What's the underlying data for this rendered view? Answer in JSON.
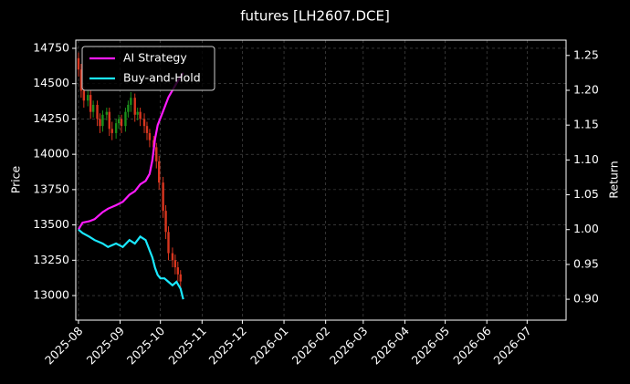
{
  "chart_data": {
    "type": "candlestick",
    "title": "futures [LH2607.DCE]",
    "ylabel": "Price",
    "y2label": "Return",
    "x": [
      0,
      2,
      4,
      7,
      9,
      11,
      14,
      16,
      18,
      21,
      23,
      25,
      28,
      30,
      32,
      35,
      37,
      39,
      42,
      44,
      46,
      49,
      51,
      53,
      56,
      58,
      60,
      63,
      65,
      67,
      70,
      72,
      74,
      76
    ],
    "open": [
      14680,
      14600,
      14450,
      14380,
      14420,
      14300,
      14350,
      14250,
      14200,
      14280,
      14300,
      14180,
      14150,
      14220,
      14250,
      14200,
      14300,
      14350,
      14400,
      14280,
      14300,
      14250,
      14200,
      14150,
      14100,
      14050,
      13950,
      13800,
      13600,
      13450,
      13300,
      13250,
      13200,
      13150
    ],
    "high": [
      14720,
      14640,
      14480,
      14450,
      14450,
      14380,
      14380,
      14290,
      14310,
      14330,
      14330,
      14230,
      14250,
      14280,
      14280,
      14330,
      14380,
      14440,
      14430,
      14330,
      14330,
      14290,
      14230,
      14180,
      14130,
      14080,
      13990,
      13840,
      13640,
      13490,
      13340,
      13290,
      13240,
      13180
    ],
    "low": [
      14550,
      14400,
      14330,
      14340,
      14250,
      14260,
      14200,
      14150,
      14160,
      14240,
      14130,
      14100,
      14110,
      14180,
      14150,
      14160,
      14260,
      14300,
      14230,
      14240,
      14200,
      14150,
      14100,
      14050,
      14000,
      13900,
      13750,
      13550,
      13400,
      13250,
      13200,
      13150,
      13100,
      13050
    ],
    "close": [
      14600,
      14450,
      14380,
      14420,
      14300,
      14350,
      14250,
      14200,
      14280,
      14300,
      14180,
      14150,
      14220,
      14250,
      14200,
      14300,
      14350,
      14400,
      14280,
      14300,
      14250,
      14200,
      14150,
      14100,
      14050,
      13950,
      13800,
      13600,
      13450,
      13300,
      13250,
      13200,
      13150,
      13100
    ],
    "up_color": "#1a8f1a",
    "down_color": "#d8361f",
    "series": [
      {
        "name": "AI Strategy",
        "color": "#ff1aff",
        "axis": "y2",
        "x": [
          0,
          3,
          8,
          12,
          18,
          22,
          28,
          33,
          38,
          42,
          46,
          50,
          53,
          55,
          57,
          59,
          61,
          64,
          67,
          70,
          73,
          76,
          78
        ],
        "values": [
          1.0,
          1.01,
          1.012,
          1.015,
          1.025,
          1.03,
          1.035,
          1.04,
          1.05,
          1.055,
          1.065,
          1.07,
          1.08,
          1.1,
          1.13,
          1.15,
          1.16,
          1.175,
          1.19,
          1.2,
          1.21,
          1.22,
          1.225
        ]
      },
      {
        "name": "Buy-and-Hold",
        "color": "#1ae8ff",
        "axis": "y2",
        "x": [
          0,
          3,
          8,
          12,
          18,
          22,
          28,
          33,
          38,
          42,
          46,
          50,
          53,
          55,
          57,
          59,
          61,
          64,
          67,
          70,
          73,
          76,
          78
        ],
        "values": [
          1.0,
          0.995,
          0.99,
          0.985,
          0.98,
          0.975,
          0.98,
          0.975,
          0.985,
          0.98,
          0.99,
          0.985,
          0.97,
          0.96,
          0.945,
          0.935,
          0.93,
          0.93,
          0.925,
          0.92,
          0.925,
          0.915,
          0.9
        ]
      }
    ],
    "xlim": [
      -2,
      363
    ],
    "xticks": [
      {
        "value": 0,
        "label": "2025-08"
      },
      {
        "value": 31,
        "label": "2025-09"
      },
      {
        "value": 61,
        "label": "2025-10"
      },
      {
        "value": 92,
        "label": "2025-11"
      },
      {
        "value": 122,
        "label": "2025-12"
      },
      {
        "value": 153,
        "label": "2026-01"
      },
      {
        "value": 184,
        "label": "2026-02"
      },
      {
        "value": 212,
        "label": "2026-03"
      },
      {
        "value": 243,
        "label": "2026-04"
      },
      {
        "value": 273,
        "label": "2026-05"
      },
      {
        "value": 304,
        "label": "2026-06"
      },
      {
        "value": 334,
        "label": "2026-07"
      }
    ],
    "ylim": [
      12826,
      14808
    ],
    "yticks": [
      13000,
      13250,
      13500,
      13750,
      14000,
      14250,
      14500,
      14750
    ],
    "y2lim": [
      0.87,
      1.272
    ],
    "y2ticks": [
      {
        "value": 0.9,
        "label": "0.90"
      },
      0.95,
      {
        "value": 1.0,
        "label": "1.00"
      },
      1.05,
      {
        "value": 1.1,
        "label": "1.10"
      },
      1.15,
      {
        "value": 1.2,
        "label": "1.20"
      },
      1.25
    ],
    "grid": true,
    "legend": "upper left"
  }
}
